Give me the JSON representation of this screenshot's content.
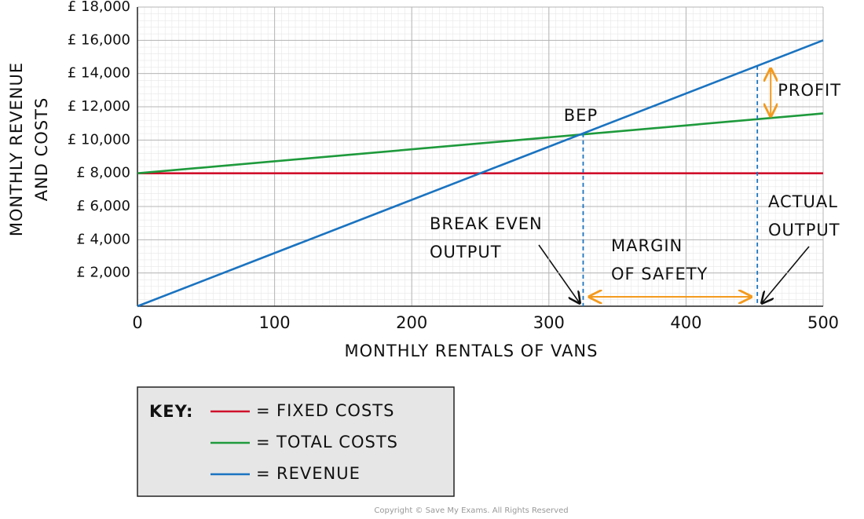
{
  "chart_data": {
    "type": "line",
    "x_label": "MONTHLY RENTALS OF VANS",
    "y_label": [
      "MONTHLY REVENUE",
      "AND COSTS"
    ],
    "x": [
      0,
      500
    ],
    "series": [
      {
        "name": "FIXED COSTS",
        "color": "#d0112b",
        "values": [
          8000,
          8000
        ]
      },
      {
        "name": "TOTAL COSTS",
        "color": "#1e9a3c",
        "values": [
          8000,
          11600
        ]
      },
      {
        "name": "REVENUE",
        "color": "#1a73c0",
        "values": [
          0,
          16000
        ]
      }
    ],
    "xlim": [
      0,
      500
    ],
    "xticks": [
      0,
      100,
      200,
      300,
      400,
      500
    ],
    "ylim": [
      0,
      18000
    ],
    "yticks": [
      {
        "value": 2000,
        "label": "£ 2,000"
      },
      {
        "value": 4000,
        "label": "£ 4,000"
      },
      {
        "value": 6000,
        "label": "£ 6,000"
      },
      {
        "value": 8000,
        "label": "£ 8,000"
      },
      {
        "value": 10000,
        "label": "£ 10,000"
      },
      {
        "value": 12000,
        "label": "£ 12,000"
      },
      {
        "value": 14000,
        "label": "£ 14,000"
      },
      {
        "value": 16000,
        "label": "£ 16,000"
      },
      {
        "value": 18000,
        "label": "£ 18,000"
      }
    ],
    "grid": true,
    "annotations": {
      "bep_label": "BEP",
      "bep_x": 325,
      "break_even_label": [
        "BREAK EVEN",
        "OUTPUT"
      ],
      "actual_output_x": 452,
      "actual_output_label": [
        "ACTUAL",
        "OUTPUT"
      ],
      "margin_label": [
        "MARGIN",
        "OF SAFETY"
      ],
      "profit_label": "PROFIT",
      "arrow_color": "#f39a1e",
      "line_color": "#1a73c0"
    },
    "legend": {
      "title": "KEY:",
      "separator": "="
    },
    "copyright": "Copyright © Save My Exams. All Rights Reserved"
  }
}
